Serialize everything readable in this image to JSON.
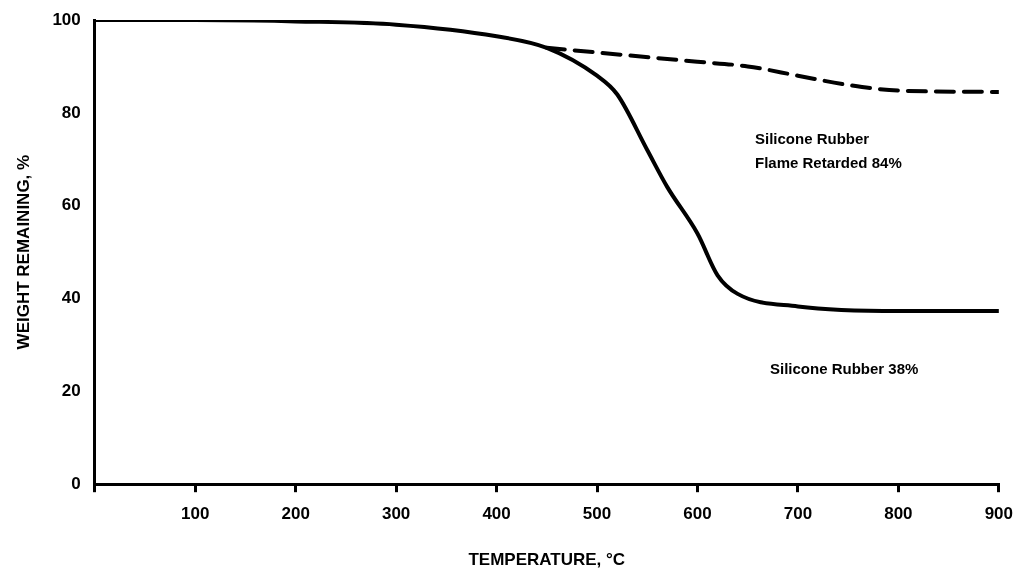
{
  "chart_data": {
    "type": "line",
    "xlabel": "TEMPERATURE, °C",
    "ylabel": "WEIGHT REMAINING, %",
    "xlim": [
      0,
      900
    ],
    "xticks": [
      {
        "value": 0,
        "label": null
      },
      100,
      200,
      300,
      400,
      500,
      600,
      700,
      800,
      900
    ],
    "ylim": [
      0,
      100
    ],
    "yticks": [
      0,
      20,
      40,
      60,
      80,
      100
    ],
    "grid": false,
    "legend": false,
    "marker": "none",
    "series": [
      {
        "color": "#000000",
        "line_style": "solid",
        "x": [
          0,
          100,
          200,
          300,
          400,
          450,
          500,
          520,
          550,
          570,
          600,
          620,
          640,
          700,
          800,
          900
        ],
        "values": [
          100,
          100,
          99.7,
          99,
          96.5,
          94,
          88,
          84,
          72,
          64,
          54,
          45,
          41,
          38.3,
          37.3,
          37.3
        ]
      },
      {
        "color": "#000000",
        "line_style": "dashed",
        "x": [
          450,
          500,
          600,
          650,
          700,
          750,
          800,
          900
        ],
        "values": [
          94,
          93,
          91,
          90,
          88,
          86,
          84.8,
          84.5
        ]
      }
    ],
    "annotations": [
      "Silicone Rubber\nFlame Retarded 84%",
      "Silicone Rubber 38%"
    ]
  }
}
